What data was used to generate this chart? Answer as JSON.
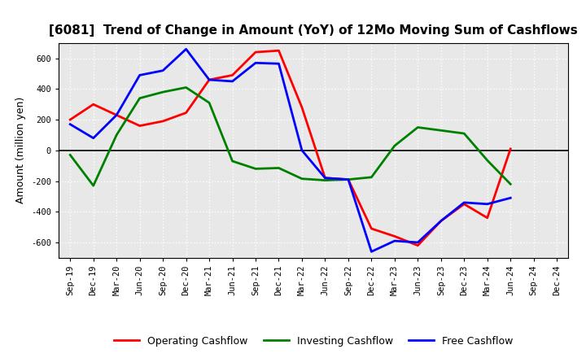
{
  "title": "[6081]  Trend of Change in Amount (YoY) of 12Mo Moving Sum of Cashflows",
  "ylabel": "Amount (million yen)",
  "x_labels": [
    "Sep-19",
    "Dec-19",
    "Mar-20",
    "Jun-20",
    "Sep-20",
    "Dec-20",
    "Mar-21",
    "Jun-21",
    "Sep-21",
    "Dec-21",
    "Mar-22",
    "Jun-22",
    "Sep-22",
    "Dec-22",
    "Mar-23",
    "Jun-23",
    "Sep-23",
    "Dec-23",
    "Mar-24",
    "Jun-24",
    "Sep-24",
    "Dec-24"
  ],
  "operating_cashflow": [
    200,
    300,
    230,
    160,
    190,
    245,
    460,
    490,
    640,
    650,
    280,
    -180,
    -190,
    -510,
    -560,
    -620,
    -460,
    -350,
    -440,
    10,
    null,
    null
  ],
  "investing_cashflow": [
    -30,
    -230,
    100,
    340,
    380,
    410,
    310,
    -70,
    -120,
    -115,
    -185,
    -195,
    -190,
    -175,
    30,
    150,
    130,
    110,
    -65,
    -220,
    null,
    null
  ],
  "free_cashflow": [
    170,
    80,
    230,
    490,
    520,
    660,
    460,
    450,
    570,
    565,
    0,
    -180,
    -190,
    -660,
    -590,
    -600,
    -460,
    -340,
    -350,
    -310,
    null,
    null
  ],
  "ylim": [
    -700,
    700
  ],
  "yticks": [
    -600,
    -400,
    -200,
    0,
    200,
    400,
    600
  ],
  "operating_color": "#ff0000",
  "investing_color": "#008000",
  "free_color": "#0000ff",
  "plot_bg_color": "#e8e8e8",
  "fig_bg_color": "#ffffff",
  "grid_color": "#ffffff",
  "legend_labels": [
    "Operating Cashflow",
    "Investing Cashflow",
    "Free Cashflow"
  ],
  "title_fontsize": 11,
  "tick_fontsize": 7.5,
  "ylabel_fontsize": 9,
  "legend_fontsize": 9,
  "linewidth": 2.0
}
